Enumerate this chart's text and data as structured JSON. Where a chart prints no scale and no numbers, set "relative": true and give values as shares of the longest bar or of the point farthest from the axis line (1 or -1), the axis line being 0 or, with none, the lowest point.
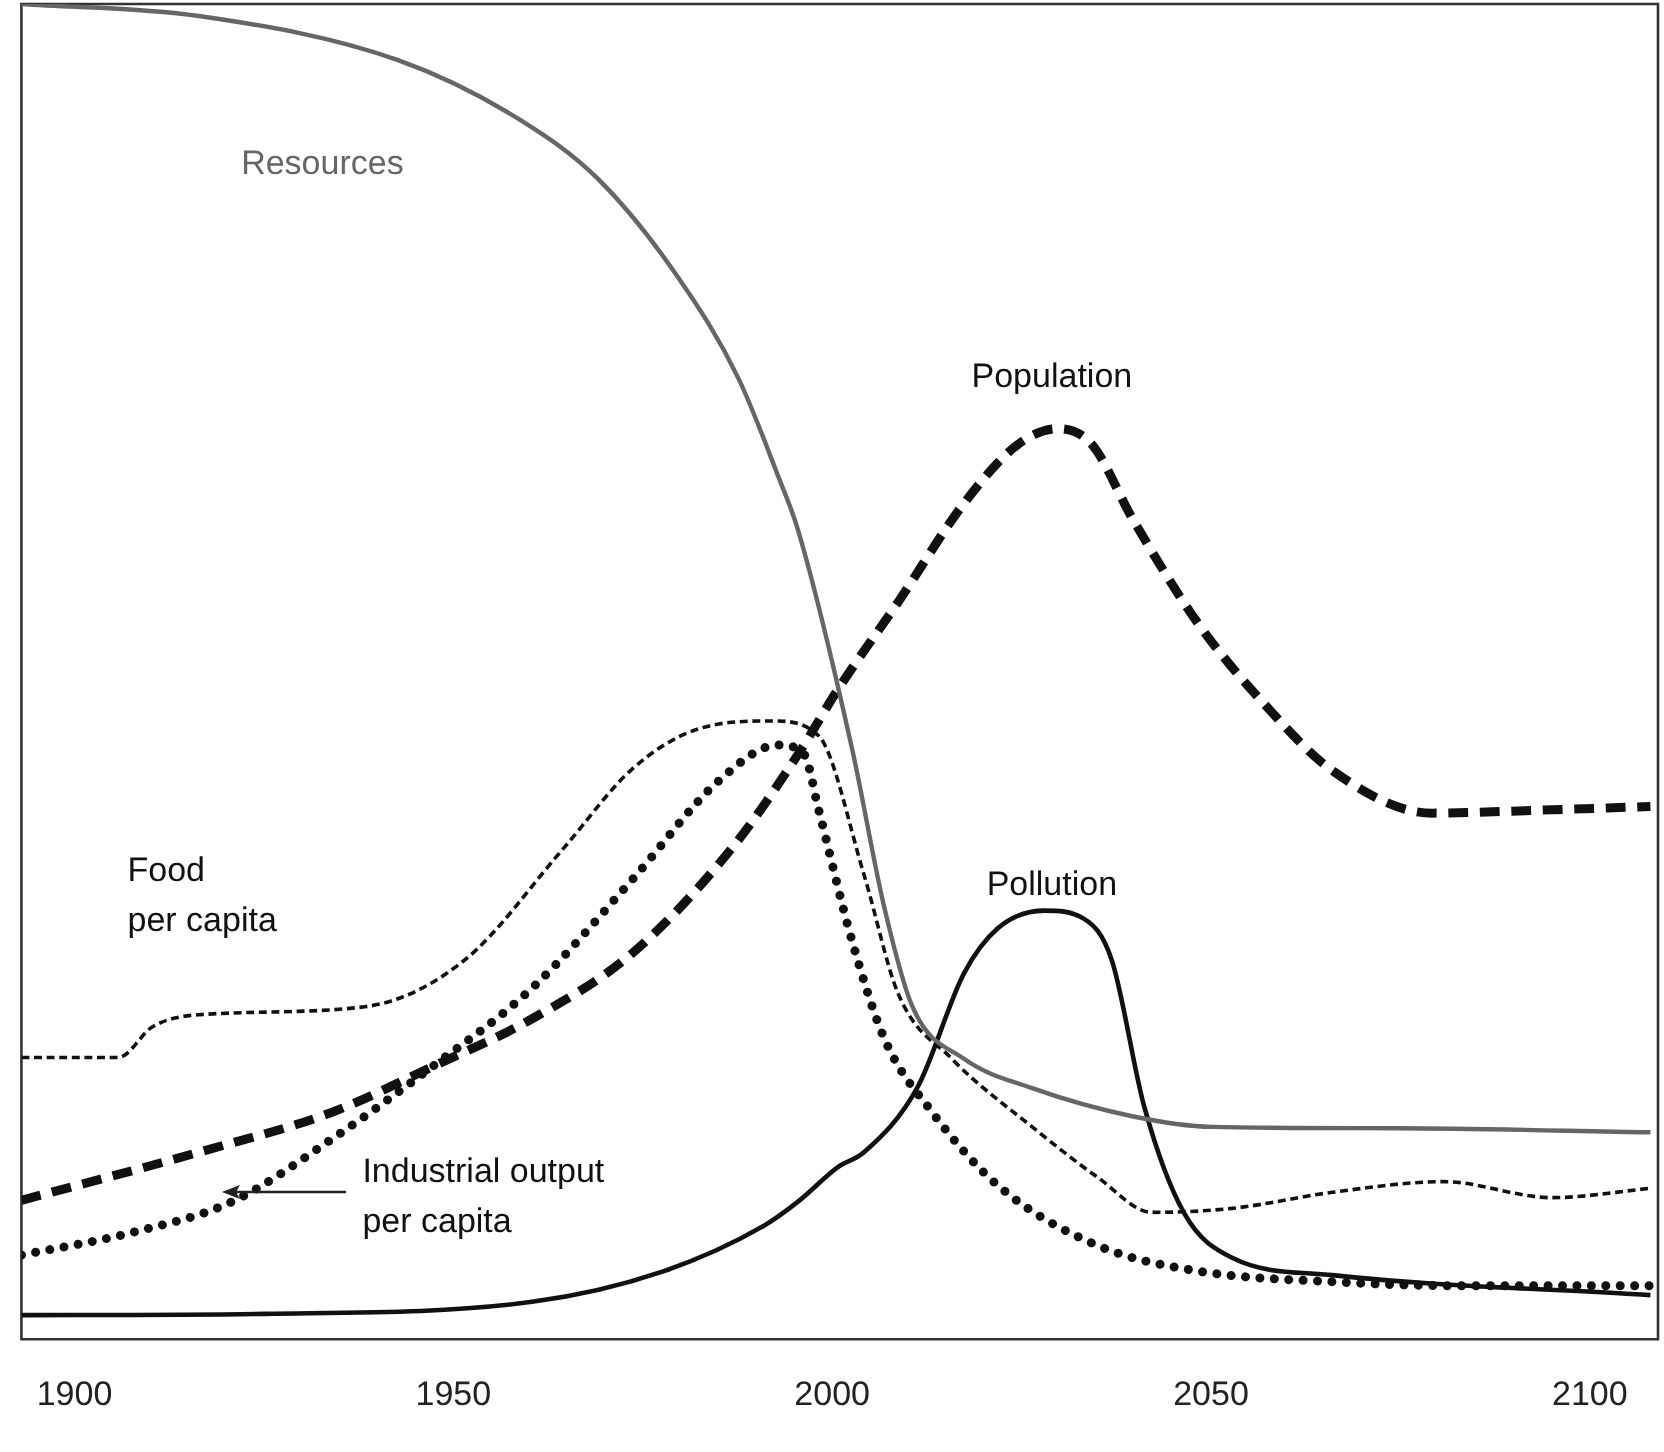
{
  "chart_data": {
    "type": "line",
    "relative": true,
    "tick_labels": "x",
    "grid": false,
    "legend": false,
    "marker": "none",
    "xlim": [
      1893,
      2109
    ],
    "xticks": [
      1900,
      1950,
      2000,
      2050,
      2100
    ],
    "series": [
      {
        "name": "Resources",
        "color": "#666666",
        "line_style": "solid",
        "x": [
          1893,
          1916.4,
          1942.7,
          1958.6,
          1969.1,
          1979.7,
          1987.6,
          1992.9,
          1995.5,
          2002.6,
          2006.9,
          2010.6,
          2017.4,
          2026.4,
          2039.6,
          2050.1,
          2074.7,
          2108
        ],
        "values": [
          1.0,
          0.991,
          0.958,
          0.914,
          0.869,
          0.795,
          0.72,
          0.646,
          0.606,
          0.443,
          0.323,
          0.249,
          0.21,
          0.188,
          0.167,
          0.159,
          0.158,
          0.155
        ]
      },
      {
        "name": "Population",
        "color": "#111111",
        "line_style": "dashed",
        "x": [
          1893,
          1916.4,
          1934,
          1947.2,
          1960.4,
          1973.6,
          1986.8,
          1995.5,
          2000.8,
          2008.7,
          2017.4,
          2024.5,
          2029.8,
          2034.3,
          2039.6,
          2048.3,
          2057,
          2066,
          2079.2,
          2092.3,
          2108
        ],
        "values": [
          0.104,
          0.14,
          0.17,
          0.204,
          0.24,
          0.289,
          0.368,
          0.438,
          0.487,
          0.552,
          0.626,
          0.67,
          0.682,
          0.67,
          0.615,
          0.536,
          0.476,
          0.426,
          0.394,
          0.396,
          0.399
        ]
      },
      {
        "name": "Food per capita",
        "color": "#111111",
        "line_style": "dashed",
        "x": [
          1893,
          1905.8,
          1910.3,
          1916.4,
          1938.3,
          1951.5,
          1964.6,
          1973.6,
          1982.3,
          1992.1,
          1998.2,
          2004.2,
          2008.7,
          2015.8,
          2026.4,
          2035.1,
          2042.2,
          2052.8,
          2066,
          2080.7,
          2095,
          2108
        ],
        "values": [
          0.211,
          0.211,
          0.234,
          0.243,
          0.249,
          0.284,
          0.368,
          0.427,
          0.457,
          0.463,
          0.452,
          0.348,
          0.259,
          0.21,
          0.159,
          0.121,
          0.095,
          0.098,
          0.11,
          0.118,
          0.106,
          0.113
        ]
      },
      {
        "name": "Industrial output per capita",
        "color": "#111111",
        "line_style": "dotted",
        "x": [
          1893,
          1907.7,
          1920.8,
          1934,
          1947.2,
          1960.4,
          1973.6,
          1985,
          1992.9,
          1996.3,
          1998.2,
          2002.6,
          2006.9,
          2013.2,
          2021.9,
          2035.1,
          2048.3,
          2066,
          2083.4,
          2108
        ],
        "values": [
          0.063,
          0.08,
          0.103,
          0.15,
          0.204,
          0.263,
          0.344,
          0.418,
          0.445,
          0.438,
          0.397,
          0.299,
          0.225,
          0.17,
          0.115,
          0.07,
          0.051,
          0.043,
          0.04,
          0.04
        ]
      },
      {
        "name": "Pollution",
        "color": "#111111",
        "line_style": "solid",
        "x": [
          1893,
          1925.1,
          1960.4,
          1977.8,
          1991,
          1995.5,
          2000.8,
          2004.2,
          2011.3,
          2017.4,
          2021.9,
          2028,
          2033.2,
          2036.9,
          2041.2,
          2046.4,
          2052.8,
          2066,
          2108
        ],
        "values": [
          0.018,
          0.019,
          0.028,
          0.051,
          0.085,
          0.103,
          0.129,
          0.14,
          0.189,
          0.274,
          0.308,
          0.321,
          0.315,
          0.284,
          0.174,
          0.095,
          0.061,
          0.048,
          0.033
        ]
      }
    ]
  }
}
